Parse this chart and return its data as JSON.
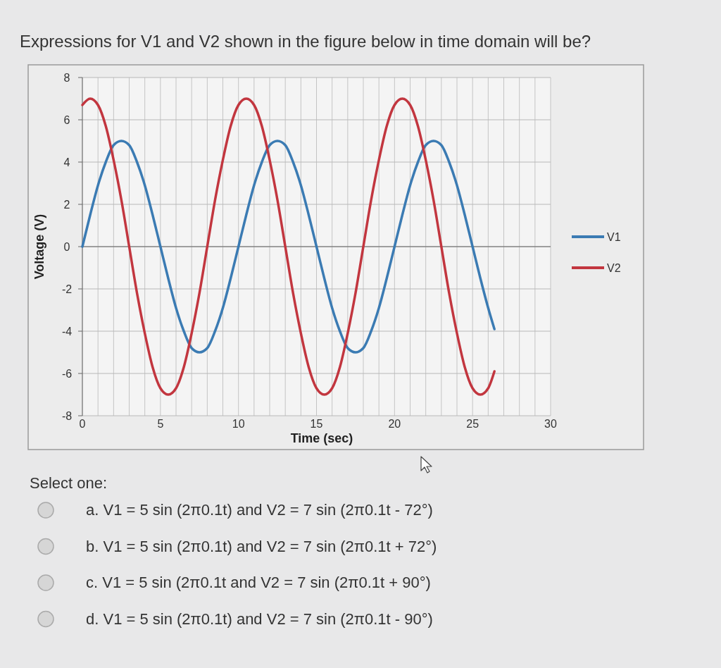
{
  "chart_data": {
    "type": "line",
    "title": "Expressions for V1 and V2 shown in the figure below in time domain will be?",
    "xlabel": "Time (sec)",
    "ylabel": "Voltage (V)",
    "x": [
      0,
      0.5,
      1,
      1.5,
      2,
      2.5,
      3,
      3.5,
      4,
      4.5,
      5,
      5.5,
      6,
      6.5,
      7,
      7.5,
      8,
      8.5,
      9,
      9.5,
      10,
      10.5,
      11,
      11.5,
      12,
      12.5,
      13,
      13.5,
      14,
      14.5,
      15,
      15.5,
      16,
      16.5,
      17,
      17.5,
      18,
      18.5,
      19,
      19.5,
      20,
      20.5,
      21,
      21.5,
      22,
      22.5,
      23,
      23.5,
      24,
      24.5,
      25,
      25.5,
      26,
      26.4
    ],
    "series": [
      {
        "name": "V1",
        "color": "#3b7bb3",
        "values": [
          0,
          1.5,
          2.9,
          4.0,
          4.8,
          5,
          4.8,
          4.0,
          2.9,
          1.5,
          0,
          -1.5,
          -2.9,
          -4.0,
          -4.8,
          -5,
          -4.8,
          -4.0,
          -2.9,
          -1.5,
          0,
          1.5,
          2.9,
          4.0,
          4.8,
          5,
          4.8,
          4.0,
          2.9,
          1.5,
          0,
          -1.5,
          -2.9,
          -4.0,
          -4.8,
          -5,
          -4.8,
          -4.0,
          -2.9,
          -1.5,
          0,
          1.5,
          2.9,
          4.0,
          4.8,
          5,
          4.8,
          4.0,
          2.9,
          1.5,
          0,
          -1.5,
          -2.9,
          -3.9
        ]
      },
      {
        "name": "V2",
        "color": "#c2363f",
        "values": [
          6.7,
          7,
          6.7,
          5.7,
          4.1,
          2.2,
          0,
          -2.2,
          -4.1,
          -5.7,
          -6.7,
          -7,
          -6.7,
          -5.7,
          -4.1,
          -2.2,
          0,
          2.2,
          4.1,
          5.7,
          6.7,
          7,
          6.7,
          5.7,
          4.1,
          2.2,
          0,
          -2.2,
          -4.1,
          -5.7,
          -6.7,
          -7,
          -6.7,
          -5.7,
          -4.1,
          -2.2,
          0,
          2.2,
          4.1,
          5.7,
          6.7,
          7,
          6.7,
          5.7,
          4.1,
          2.2,
          0,
          -2.2,
          -4.1,
          -5.7,
          -6.7,
          -7,
          -6.7,
          -5.9
        ]
      }
    ],
    "xlim": [
      0,
      30
    ],
    "xticks": [
      0,
      {
        "value": 1,
        "label": null
      },
      {
        "value": 2,
        "label": null
      },
      {
        "value": 3,
        "label": null
      },
      {
        "value": 4,
        "label": null
      },
      5,
      {
        "value": 6,
        "label": null
      },
      {
        "value": 7,
        "label": null
      },
      {
        "value": 8,
        "label": null
      },
      {
        "value": 9,
        "label": null
      },
      10,
      {
        "value": 11,
        "label": null
      },
      {
        "value": 12,
        "label": null
      },
      {
        "value": 13,
        "label": null
      },
      {
        "value": 14,
        "label": null
      },
      15,
      {
        "value": 16,
        "label": null
      },
      {
        "value": 17,
        "label": null
      },
      {
        "value": 18,
        "label": null
      },
      {
        "value": 19,
        "label": null
      },
      20,
      {
        "value": 21,
        "label": null
      },
      {
        "value": 22,
        "label": null
      },
      {
        "value": 23,
        "label": null
      },
      {
        "value": 24,
        "label": null
      },
      25,
      {
        "value": 26,
        "label": null
      },
      {
        "value": 27,
        "label": null
      },
      {
        "value": 28,
        "label": null
      },
      {
        "value": 29,
        "label": null
      },
      30
    ],
    "ylim": [
      -8,
      8
    ],
    "yticks": [
      -8,
      -6,
      -4,
      -2,
      0,
      2,
      4,
      6,
      8
    ],
    "grid": true,
    "legend": "right",
    "annotations": [
      "Select one:",
      "a. V1 = 5 sin (2π0.1t) and V2 = 7 sin (2π0.1t - 72°)",
      "b. V1 = 5 sin (2π0.1t) and V2 = 7 sin (2π0.1t + 72°)",
      "c. V1 = 5 sin (2π0.1t and V2 = 7 sin (2π0.1t + 90°)",
      "d. V1 = 5 sin (2π0.1t) and V2 = 7 sin (2π0.1t - 90°)"
    ]
  }
}
